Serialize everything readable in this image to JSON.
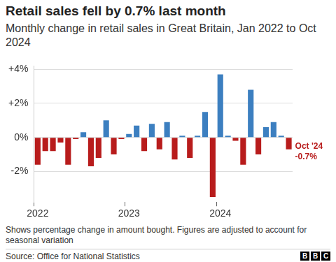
{
  "chart_data": {
    "type": "bar",
    "title": "Retail sales fell by 0.7% last month",
    "subtitle": "Monthly change in retail sales in Great Britain, Jan 2022 to Oct 2024",
    "note": "Shows percentage change in amount bought. Figures are adjusted to account for seasonal variation",
    "source": "Source: Office for National Statistics",
    "logo": "BBC",
    "categories": [
      "2022",
      null,
      null,
      null,
      null,
      null,
      null,
      null,
      null,
      null,
      null,
      null,
      "2023",
      null,
      null,
      null,
      null,
      null,
      null,
      null,
      null,
      null,
      null,
      null,
      "2024",
      null,
      null,
      null,
      null,
      null,
      null,
      null,
      null,
      null
    ],
    "values": [
      -1.6,
      -0.8,
      -0.8,
      -0.3,
      -1.6,
      -0.1,
      0.3,
      -1.7,
      -1.2,
      1.0,
      -1.0,
      -0.1,
      0.2,
      0.7,
      -0.8,
      0.8,
      -0.7,
      0.9,
      -1.3,
      0.1,
      -1.2,
      0.1,
      1.5,
      -3.5,
      3.7,
      0.1,
      -0.2,
      -1.6,
      2.8,
      -1.0,
      0.6,
      0.9,
      0.1,
      -0.7
    ],
    "colors": [
      "#b81c1c",
      "#b81c1c",
      "#b81c1c",
      "#b81c1c",
      "#b81c1c",
      "#b81c1c",
      "#3c7fc0",
      "#b81c1c",
      "#b81c1c",
      "#3c7fc0",
      "#b81c1c",
      "#b81c1c",
      "#3c7fc0",
      "#3c7fc0",
      "#b81c1c",
      "#3c7fc0",
      "#b81c1c",
      "#3c7fc0",
      "#b81c1c",
      "#3c7fc0",
      "#b81c1c",
      "#3c7fc0",
      "#3c7fc0",
      "#b81c1c",
      "#3c7fc0",
      "#3c7fc0",
      "#b81c1c",
      "#b81c1c",
      "#3c7fc0",
      "#b81c1c",
      "#3c7fc0",
      "#3c7fc0",
      "#3c7fc0",
      "#b81c1c"
    ],
    "annotation": {
      "text": "Oct '24",
      "value": -0.7,
      "value_label": "-0.7%",
      "color": "#b81c1c"
    },
    "ylim": [
      -3.8,
      4.2
    ],
    "yticks": [
      {
        "value": -2,
        "label": "-2%"
      },
      {
        "value": 0,
        "label": "0%"
      },
      {
        "value": 2,
        "label": "+2%"
      },
      {
        "value": 4,
        "label": "+4%"
      }
    ],
    "grid": true
  }
}
